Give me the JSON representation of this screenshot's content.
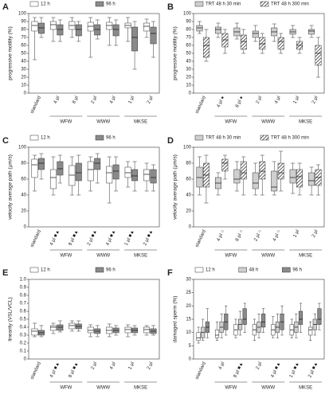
{
  "chart_data": [
    {
      "type": "box",
      "label": "A",
      "ylabel": "progressive motility (%)",
      "ylim": [
        0,
        100
      ],
      "yticks": [
        0,
        10,
        20,
        30,
        40,
        50,
        60,
        70,
        80,
        90,
        100
      ],
      "categories": [
        "standard",
        "4 µl",
        "8 µl",
        "2 µl",
        "4 µl",
        "1 µl",
        "2 µl"
      ],
      "groups": [
        "WFW",
        "WWW",
        "MKSE"
      ],
      "series": [
        {
          "name": "12 h",
          "color": "#ffffff",
          "boxes": [
            {
              "min": 42,
              "q1": 78,
              "median": 85,
              "q3": 90,
              "max": 95
            },
            {
              "min": 65,
              "q1": 80,
              "median": 86,
              "q3": 90,
              "max": 95
            },
            {
              "min": 70,
              "q1": 80,
              "median": 85,
              "q3": 90,
              "max": 95
            },
            {
              "min": 45,
              "q1": 78,
              "median": 84,
              "q3": 89,
              "max": 95
            },
            {
              "min": 60,
              "q1": 80,
              "median": 85,
              "q3": 89,
              "max": 95
            },
            {
              "min": 65,
              "q1": 82,
              "median": 85,
              "q3": 88,
              "max": 95
            },
            {
              "min": 70,
              "q1": 78,
              "median": 84,
              "q3": 88,
              "max": 93
            }
          ]
        },
        {
          "name": "96 h",
          "color": "#8a8a8a",
          "boxes": [
            {
              "min": 70,
              "q1": 75,
              "median": 82,
              "q3": 88,
              "max": 95
            },
            {
              "min": 65,
              "q1": 73,
              "median": 80,
              "q3": 86,
              "max": 92
            },
            {
              "min": 65,
              "q1": 72,
              "median": 80,
              "q3": 86,
              "max": 90
            },
            {
              "min": 68,
              "q1": 73,
              "median": 80,
              "q3": 86,
              "max": 92
            },
            {
              "min": 60,
              "q1": 72,
              "median": 80,
              "q3": 86,
              "max": 92
            },
            {
              "min": 30,
              "q1": 53,
              "median": 70,
              "q3": 83,
              "max": 90
            },
            {
              "min": 45,
              "q1": 62,
              "median": 75,
              "q3": 83,
              "max": 90
            }
          ]
        }
      ]
    },
    {
      "type": "box",
      "label": "B",
      "ylabel": "progressive motility (%)",
      "ylim": [
        0,
        100
      ],
      "yticks": [
        0,
        10,
        20,
        30,
        40,
        50,
        60,
        70,
        80,
        90,
        100
      ],
      "categories": [
        "standard",
        "4 µl ●",
        "8 µl ●",
        "2 µl",
        "4 µl",
        "1 µl",
        "2 µl"
      ],
      "groups": [
        "WFW",
        "WWW",
        "MKSE"
      ],
      "series": [
        {
          "name": "TRT 48 h  30 min",
          "color": "#cfcfcf",
          "boxes": [
            {
              "min": 75,
              "q1": 78,
              "median": 82,
              "q3": 85,
              "max": 90
            },
            {
              "min": 70,
              "q1": 75,
              "median": 80,
              "q3": 83,
              "max": 88
            },
            {
              "min": 68,
              "q1": 72,
              "median": 77,
              "q3": 82,
              "max": 88
            },
            {
              "min": 65,
              "q1": 70,
              "median": 75,
              "q3": 78,
              "max": 85
            },
            {
              "min": 65,
              "q1": 72,
              "median": 77,
              "q3": 82,
              "max": 87
            },
            {
              "min": 70,
              "q1": 74,
              "median": 77,
              "q3": 80,
              "max": 85
            },
            {
              "min": 70,
              "q1": 74,
              "median": 78,
              "q3": 80,
              "max": 85
            }
          ]
        },
        {
          "name": "TRT 48 h  300 min",
          "color": "#555555",
          "pattern": "hatch",
          "boxes": [
            {
              "min": 40,
              "q1": 45,
              "median": 60,
              "q3": 70,
              "max": 80
            },
            {
              "min": 50,
              "q1": 58,
              "median": 67,
              "q3": 75,
              "max": 80
            },
            {
              "min": 50,
              "q1": 55,
              "median": 65,
              "q3": 73,
              "max": 80
            },
            {
              "min": 50,
              "q1": 55,
              "median": 62,
              "q3": 70,
              "max": 75
            },
            {
              "min": 50,
              "q1": 55,
              "median": 65,
              "q3": 70,
              "max": 75
            },
            {
              "min": 50,
              "q1": 55,
              "median": 60,
              "q3": 65,
              "max": 70
            },
            {
              "min": 20,
              "q1": 35,
              "median": 50,
              "q3": 60,
              "max": 70
            }
          ]
        }
      ]
    },
    {
      "type": "box",
      "label": "C",
      "ylabel": "velocity average path (µm/s)",
      "ylim": [
        0,
        100
      ],
      "yticks": [
        0,
        20,
        40,
        60,
        80,
        100
      ],
      "categories": [
        "standard",
        "4 µl ■▲",
        "8 µl ■▲",
        "2 µl ■▲",
        "4 µl ■▲",
        "1 µl ■▲",
        "2 µl ■▲"
      ],
      "groups": [
        "WFW",
        "WWW",
        "MKSE"
      ],
      "series": [
        {
          "name": "12 h",
          "color": "#ffffff",
          "boxes": [
            {
              "min": 45,
              "q1": 62,
              "median": 78,
              "q3": 85,
              "max": 90
            },
            {
              "min": 40,
              "q1": 48,
              "median": 62,
              "q3": 72,
              "max": 88
            },
            {
              "min": 40,
              "q1": 52,
              "median": 65,
              "q3": 77,
              "max": 88
            },
            {
              "min": 45,
              "q1": 58,
              "median": 72,
              "q3": 82,
              "max": 88
            },
            {
              "min": 30,
              "q1": 55,
              "median": 68,
              "q3": 76,
              "max": 88
            },
            {
              "min": 50,
              "q1": 62,
              "median": 68,
              "q3": 75,
              "max": 82
            },
            {
              "min": 45,
              "q1": 58,
              "median": 66,
              "q3": 72,
              "max": 80
            }
          ]
        },
        {
          "name": "96 h",
          "color": "#8a8a8a",
          "boxes": [
            {
              "min": 60,
              "q1": 72,
              "median": 80,
              "q3": 86,
              "max": 92
            },
            {
              "min": 55,
              "q1": 65,
              "median": 73,
              "q3": 82,
              "max": 90
            },
            {
              "min": 40,
              "q1": 58,
              "median": 68,
              "q3": 80,
              "max": 90
            },
            {
              "min": 55,
              "q1": 72,
              "median": 80,
              "q3": 86,
              "max": 92
            },
            {
              "min": 45,
              "q1": 60,
              "median": 70,
              "q3": 78,
              "max": 88
            },
            {
              "min": 45,
              "q1": 58,
              "median": 64,
              "q3": 72,
              "max": 82
            },
            {
              "min": 45,
              "q1": 55,
              "median": 62,
              "q3": 72,
              "max": 78
            }
          ]
        }
      ]
    },
    {
      "type": "box",
      "label": "D",
      "ylabel": "velocity average path (µm/s)",
      "ylim": [
        0,
        100
      ],
      "yticks": [
        0,
        20,
        40,
        60,
        80,
        100
      ],
      "categories": [
        "standard",
        "4 µl ○",
        "8 µl ○",
        "2 µl ○",
        "4 µl ○",
        "1 µl",
        "2 µl"
      ],
      "groups": [
        "WFW",
        "WWW",
        "MKSE"
      ],
      "series": [
        {
          "name": "TRT 48 h  30 min",
          "color": "#cfcfcf",
          "boxes": [
            {
              "min": 40,
              "q1": 50,
              "median": 62,
              "q3": 75,
              "max": 88
            },
            {
              "min": 40,
              "q1": 48,
              "median": 55,
              "q3": 62,
              "max": 68
            },
            {
              "min": 45,
              "q1": 55,
              "median": 60,
              "q3": 72,
              "max": 82
            },
            {
              "min": 40,
              "q1": 48,
              "median": 55,
              "q3": 68,
              "max": 80
            },
            {
              "min": 40,
              "q1": 45,
              "median": 50,
              "q3": 70,
              "max": 82
            },
            {
              "min": 42,
              "q1": 55,
              "median": 62,
              "q3": 72,
              "max": 80
            },
            {
              "min": 40,
              "q1": 52,
              "median": 58,
              "q3": 68,
              "max": 75
            }
          ]
        },
        {
          "name": "TRT 48 h  300 min",
          "color": "#555555",
          "pattern": "hatch",
          "boxes": [
            {
              "min": 30,
              "q1": 50,
              "median": 65,
              "q3": 80,
              "max": 90
            },
            {
              "min": 60,
              "q1": 70,
              "median": 80,
              "q3": 85,
              "max": 90
            },
            {
              "min": 40,
              "q1": 60,
              "median": 68,
              "q3": 82,
              "max": 88
            },
            {
              "min": 40,
              "q1": 60,
              "median": 70,
              "q3": 82,
              "max": 90
            },
            {
              "min": 45,
              "q1": 60,
              "median": 68,
              "q3": 80,
              "max": 95
            },
            {
              "min": 40,
              "q1": 50,
              "median": 63,
              "q3": 72,
              "max": 80
            },
            {
              "min": 40,
              "q1": 52,
              "median": 62,
              "q3": 72,
              "max": 78
            }
          ]
        }
      ]
    },
    {
      "type": "box",
      "label": "E",
      "ylabel": "linearity (VSL/VCL)",
      "ylim": [
        0,
        1
      ],
      "yticks": [
        0,
        0.1,
        0.2,
        0.3,
        0.4,
        0.5,
        0.6,
        0.7,
        0.8,
        0.9,
        {
          "value": 1,
          "label": "1.0"
        }
      ],
      "categories": [
        "standard",
        "4 µl ■▲",
        "8 µl ■▲",
        "2 µl",
        "4 µl",
        "1 µl",
        "2 µl"
      ],
      "groups": [
        "WFW",
        "WWW",
        "MKSE"
      ],
      "series": [
        {
          "name": "12 h",
          "color": "#ffffff",
          "boxes": [
            {
              "min": 0.28,
              "q1": 0.3,
              "median": 0.35,
              "q3": 0.38,
              "max": 0.45
            },
            {
              "min": 0.32,
              "q1": 0.36,
              "median": 0.4,
              "q3": 0.42,
              "max": 0.45
            },
            {
              "min": 0.35,
              "q1": 0.38,
              "median": 0.42,
              "q3": 0.45,
              "max": 0.48
            },
            {
              "min": 0.28,
              "q1": 0.33,
              "median": 0.36,
              "q3": 0.4,
              "max": 0.43
            },
            {
              "min": 0.28,
              "q1": 0.32,
              "median": 0.36,
              "q3": 0.4,
              "max": 0.44
            },
            {
              "min": 0.28,
              "q1": 0.33,
              "median": 0.37,
              "q3": 0.4,
              "max": 0.43
            },
            {
              "min": 0.3,
              "q1": 0.33,
              "median": 0.37,
              "q3": 0.4,
              "max": 0.42
            }
          ]
        },
        {
          "name": "96 h",
          "color": "#8a8a8a",
          "boxes": [
            {
              "min": 0.28,
              "q1": 0.3,
              "median": 0.33,
              "q3": 0.36,
              "max": 0.42
            },
            {
              "min": 0.34,
              "q1": 0.36,
              "median": 0.4,
              "q3": 0.43,
              "max": 0.48
            },
            {
              "min": 0.35,
              "q1": 0.38,
              "median": 0.41,
              "q3": 0.44,
              "max": 0.48
            },
            {
              "min": 0.28,
              "q1": 0.32,
              "median": 0.35,
              "q3": 0.38,
              "max": 0.42
            },
            {
              "min": 0.3,
              "q1": 0.33,
              "median": 0.36,
              "q3": 0.39,
              "max": 0.42
            },
            {
              "min": 0.3,
              "q1": 0.33,
              "median": 0.36,
              "q3": 0.39,
              "max": 0.42
            },
            {
              "min": 0.3,
              "q1": 0.32,
              "median": 0.35,
              "q3": 0.38,
              "max": 0.42
            }
          ]
        }
      ]
    },
    {
      "type": "box",
      "label": "F",
      "ylabel": "damaged sperm (%)",
      "ylim": [
        0,
        30
      ],
      "yticks": [
        0,
        5,
        10,
        15,
        20,
        25,
        30
      ],
      "categories": [
        "standard",
        "4 µl",
        "8 µl ■▲",
        "2 µl",
        "4 µl ■▲",
        "1 µl ■▲",
        "2 µl ■▲"
      ],
      "groups": [
        "WFW",
        "WWW",
        "MKSE"
      ],
      "series": [
        {
          "name": "12 h",
          "color": "#ffffff",
          "boxes": [
            {
              "min": 6,
              "q1": 7,
              "median": 8,
              "q3": 10,
              "max": 12
            },
            {
              "min": 7,
              "q1": 8,
              "median": 9,
              "q3": 11,
              "max": 14
            },
            {
              "min": 8,
              "q1": 9,
              "median": 11,
              "q3": 13,
              "max": 15
            },
            {
              "min": 7,
              "q1": 9,
              "median": 11,
              "q3": 13,
              "max": 15
            },
            {
              "min": 8,
              "q1": 9,
              "median": 11,
              "q3": 13,
              "max": 16
            },
            {
              "min": 8,
              "q1": 9,
              "median": 11,
              "q3": 13,
              "max": 15
            },
            {
              "min": 7,
              "q1": 9,
              "median": 11,
              "q3": 12,
              "max": 14
            }
          ]
        },
        {
          "name": "48 h",
          "color": "#cfcfcf",
          "boxes": [
            {
              "min": 7,
              "q1": 8,
              "median": 10,
              "q3": 12,
              "max": 15
            },
            {
              "min": 8,
              "q1": 10,
              "median": 12,
              "q3": 14,
              "max": 17
            },
            {
              "min": 9,
              "q1": 11,
              "median": 13,
              "q3": 15,
              "max": 18
            },
            {
              "min": 8,
              "q1": 10,
              "median": 12,
              "q3": 14,
              "max": 17
            },
            {
              "min": 8,
              "q1": 10,
              "median": 12,
              "q3": 14,
              "max": 17
            },
            {
              "min": 8,
              "q1": 10,
              "median": 12,
              "q3": 14,
              "max": 17
            },
            {
              "min": 9,
              "q1": 11,
              "median": 13,
              "q3": 15,
              "max": 17
            }
          ]
        },
        {
          "name": "96 h",
          "color": "#8a8a8a",
          "boxes": [
            {
              "min": 8,
              "q1": 10,
              "median": 12,
              "q3": 14,
              "max": 19
            },
            {
              "min": 9,
              "q1": 11,
              "median": 14,
              "q3": 17,
              "max": 20
            },
            {
              "min": 10,
              "q1": 13,
              "median": 15,
              "q3": 19,
              "max": 21
            },
            {
              "min": 10,
              "q1": 12,
              "median": 14,
              "q3": 17,
              "max": 19
            },
            {
              "min": 9,
              "q1": 11,
              "median": 14,
              "q3": 17,
              "max": 20
            },
            {
              "min": 10,
              "q1": 13,
              "median": 15,
              "q3": 18,
              "max": 21
            },
            {
              "min": 11,
              "q1": 13,
              "median": 15,
              "q3": 19,
              "max": 21
            }
          ]
        }
      ]
    }
  ]
}
